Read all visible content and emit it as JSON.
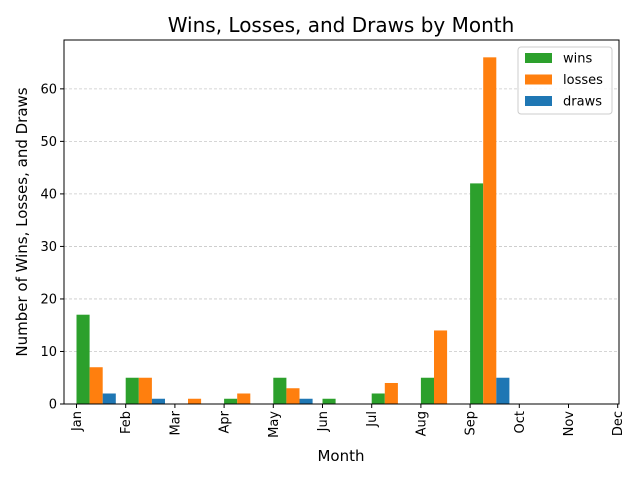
{
  "chart_data": {
    "type": "bar",
    "title": "Wins, Losses, and Draws by Month",
    "xlabel": "Month",
    "ylabel": "Number of Wins, Losses, and Draws",
    "categories": [
      "Jan",
      "Feb",
      "Mar",
      "Apr",
      "May",
      "Jun",
      "Jul",
      "Aug",
      "Sep",
      "Oct",
      "Nov",
      "Dec"
    ],
    "series": [
      {
        "name": "wins",
        "color": "#2ca02c",
        "values": [
          17,
          5,
          0,
          1,
          5,
          1,
          2,
          5,
          42,
          0,
          0,
          0
        ]
      },
      {
        "name": "losses",
        "color": "#ff7f0e",
        "values": [
          7,
          5,
          1,
          2,
          3,
          0,
          4,
          14,
          66,
          0,
          0,
          0
        ]
      },
      {
        "name": "draws",
        "color": "#1f77b4",
        "values": [
          2,
          1,
          0,
          0,
          1,
          0,
          0,
          0,
          5,
          0,
          0,
          0
        ]
      }
    ],
    "ylim": [
      0,
      69.3
    ],
    "yticks": [
      0,
      10,
      20,
      30,
      40,
      50,
      60
    ],
    "grid": "y-dashed",
    "legend": "top-right"
  }
}
